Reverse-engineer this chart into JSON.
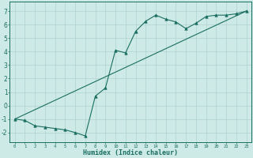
{
  "xlabel": "Humidex (Indice chaleur)",
  "bg_color": "#ceeae7",
  "line_color": "#1a6e60",
  "grid_color": "#add4d0",
  "xlim": [
    -0.5,
    23.5
  ],
  "ylim": [
    -2.7,
    7.7
  ],
  "xticks": [
    0,
    1,
    2,
    3,
    4,
    5,
    6,
    7,
    8,
    9,
    10,
    11,
    12,
    13,
    14,
    15,
    16,
    17,
    18,
    19,
    20,
    21,
    22,
    23
  ],
  "yticks": [
    -2,
    -1,
    0,
    1,
    2,
    3,
    4,
    5,
    6,
    7
  ],
  "series1_x": [
    0,
    1,
    2,
    3,
    4,
    5,
    6,
    7,
    8,
    9,
    10,
    11,
    12,
    13,
    14,
    15,
    16,
    17,
    18,
    19,
    20,
    21,
    22,
    23
  ],
  "series1_y": [
    -1.0,
    -1.1,
    -1.5,
    -1.6,
    -1.7,
    -1.8,
    -2.0,
    -2.25,
    0.7,
    1.3,
    4.1,
    3.9,
    5.5,
    6.25,
    6.7,
    6.4,
    6.2,
    5.7,
    6.1,
    6.6,
    6.7,
    6.7,
    6.8,
    7.0
  ],
  "series2_x": [
    0,
    23
  ],
  "series2_y": [
    -1.0,
    7.0
  ],
  "marker": "^",
  "marker_size": 2.5,
  "linewidth": 0.8
}
